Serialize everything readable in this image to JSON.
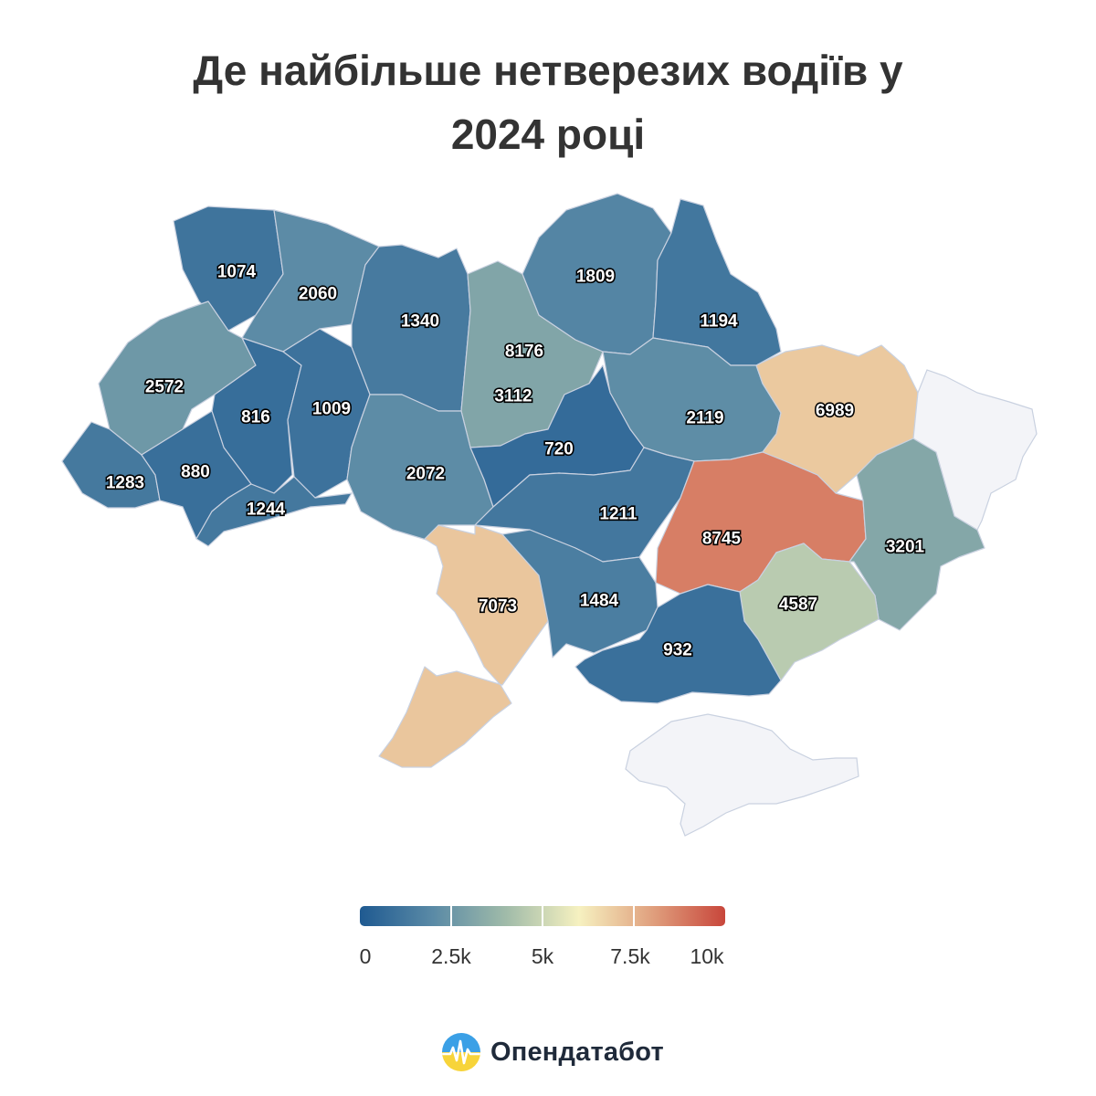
{
  "title": {
    "line1": "Де найбільше нетверезих водіїв у",
    "line2": "2024 році"
  },
  "color_scale": {
    "min": 0,
    "max": 10000,
    "stops": [
      "#1f5a91",
      "#5a8aa6",
      "#a0bba9",
      "#f6f1c0",
      "#e0a07e",
      "#c8463b"
    ]
  },
  "regions": [
    {
      "id": "volyn",
      "value": 1074
    },
    {
      "id": "rivne",
      "value": 2060
    },
    {
      "id": "zhytomyr",
      "value": 1340
    },
    {
      "id": "kyiv-city",
      "value": 8176
    },
    {
      "id": "kyiv-oblast",
      "value": 3112
    },
    {
      "id": "chernihiv",
      "value": 1809
    },
    {
      "id": "sumy",
      "value": 1194
    },
    {
      "id": "lviv",
      "value": 2572
    },
    {
      "id": "ternopil",
      "value": 816
    },
    {
      "id": "khmelnytskyi",
      "value": 1009
    },
    {
      "id": "poltava",
      "value": 2119
    },
    {
      "id": "kharkiv",
      "value": 6989
    },
    {
      "id": "zakarpattia",
      "value": 1283
    },
    {
      "id": "ivano-frankivsk",
      "value": 880
    },
    {
      "id": "chernivtsi",
      "value": 1244
    },
    {
      "id": "vinnytsia",
      "value": 2072
    },
    {
      "id": "cherkasy",
      "value": 720
    },
    {
      "id": "kirovohrad",
      "value": 1211
    },
    {
      "id": "dnipropetrovsk",
      "value": 8745
    },
    {
      "id": "donetsk",
      "value": 3201
    },
    {
      "id": "odesa",
      "value": 7073
    },
    {
      "id": "mykolaiv",
      "value": 1484
    },
    {
      "id": "zaporizhzhia",
      "value": 4587
    },
    {
      "id": "kherson",
      "value": 932
    },
    {
      "id": "luhansk",
      "value": null
    },
    {
      "id": "crimea",
      "value": null
    }
  ],
  "nodata_color": "#f3f4f8",
  "legend": {
    "ticks": [
      "0",
      "2.5k",
      "5k",
      "7.5k",
      "10k"
    ]
  },
  "brand": {
    "name": "Опендатабот",
    "logo_icon": "sun-wave-logo-icon"
  }
}
